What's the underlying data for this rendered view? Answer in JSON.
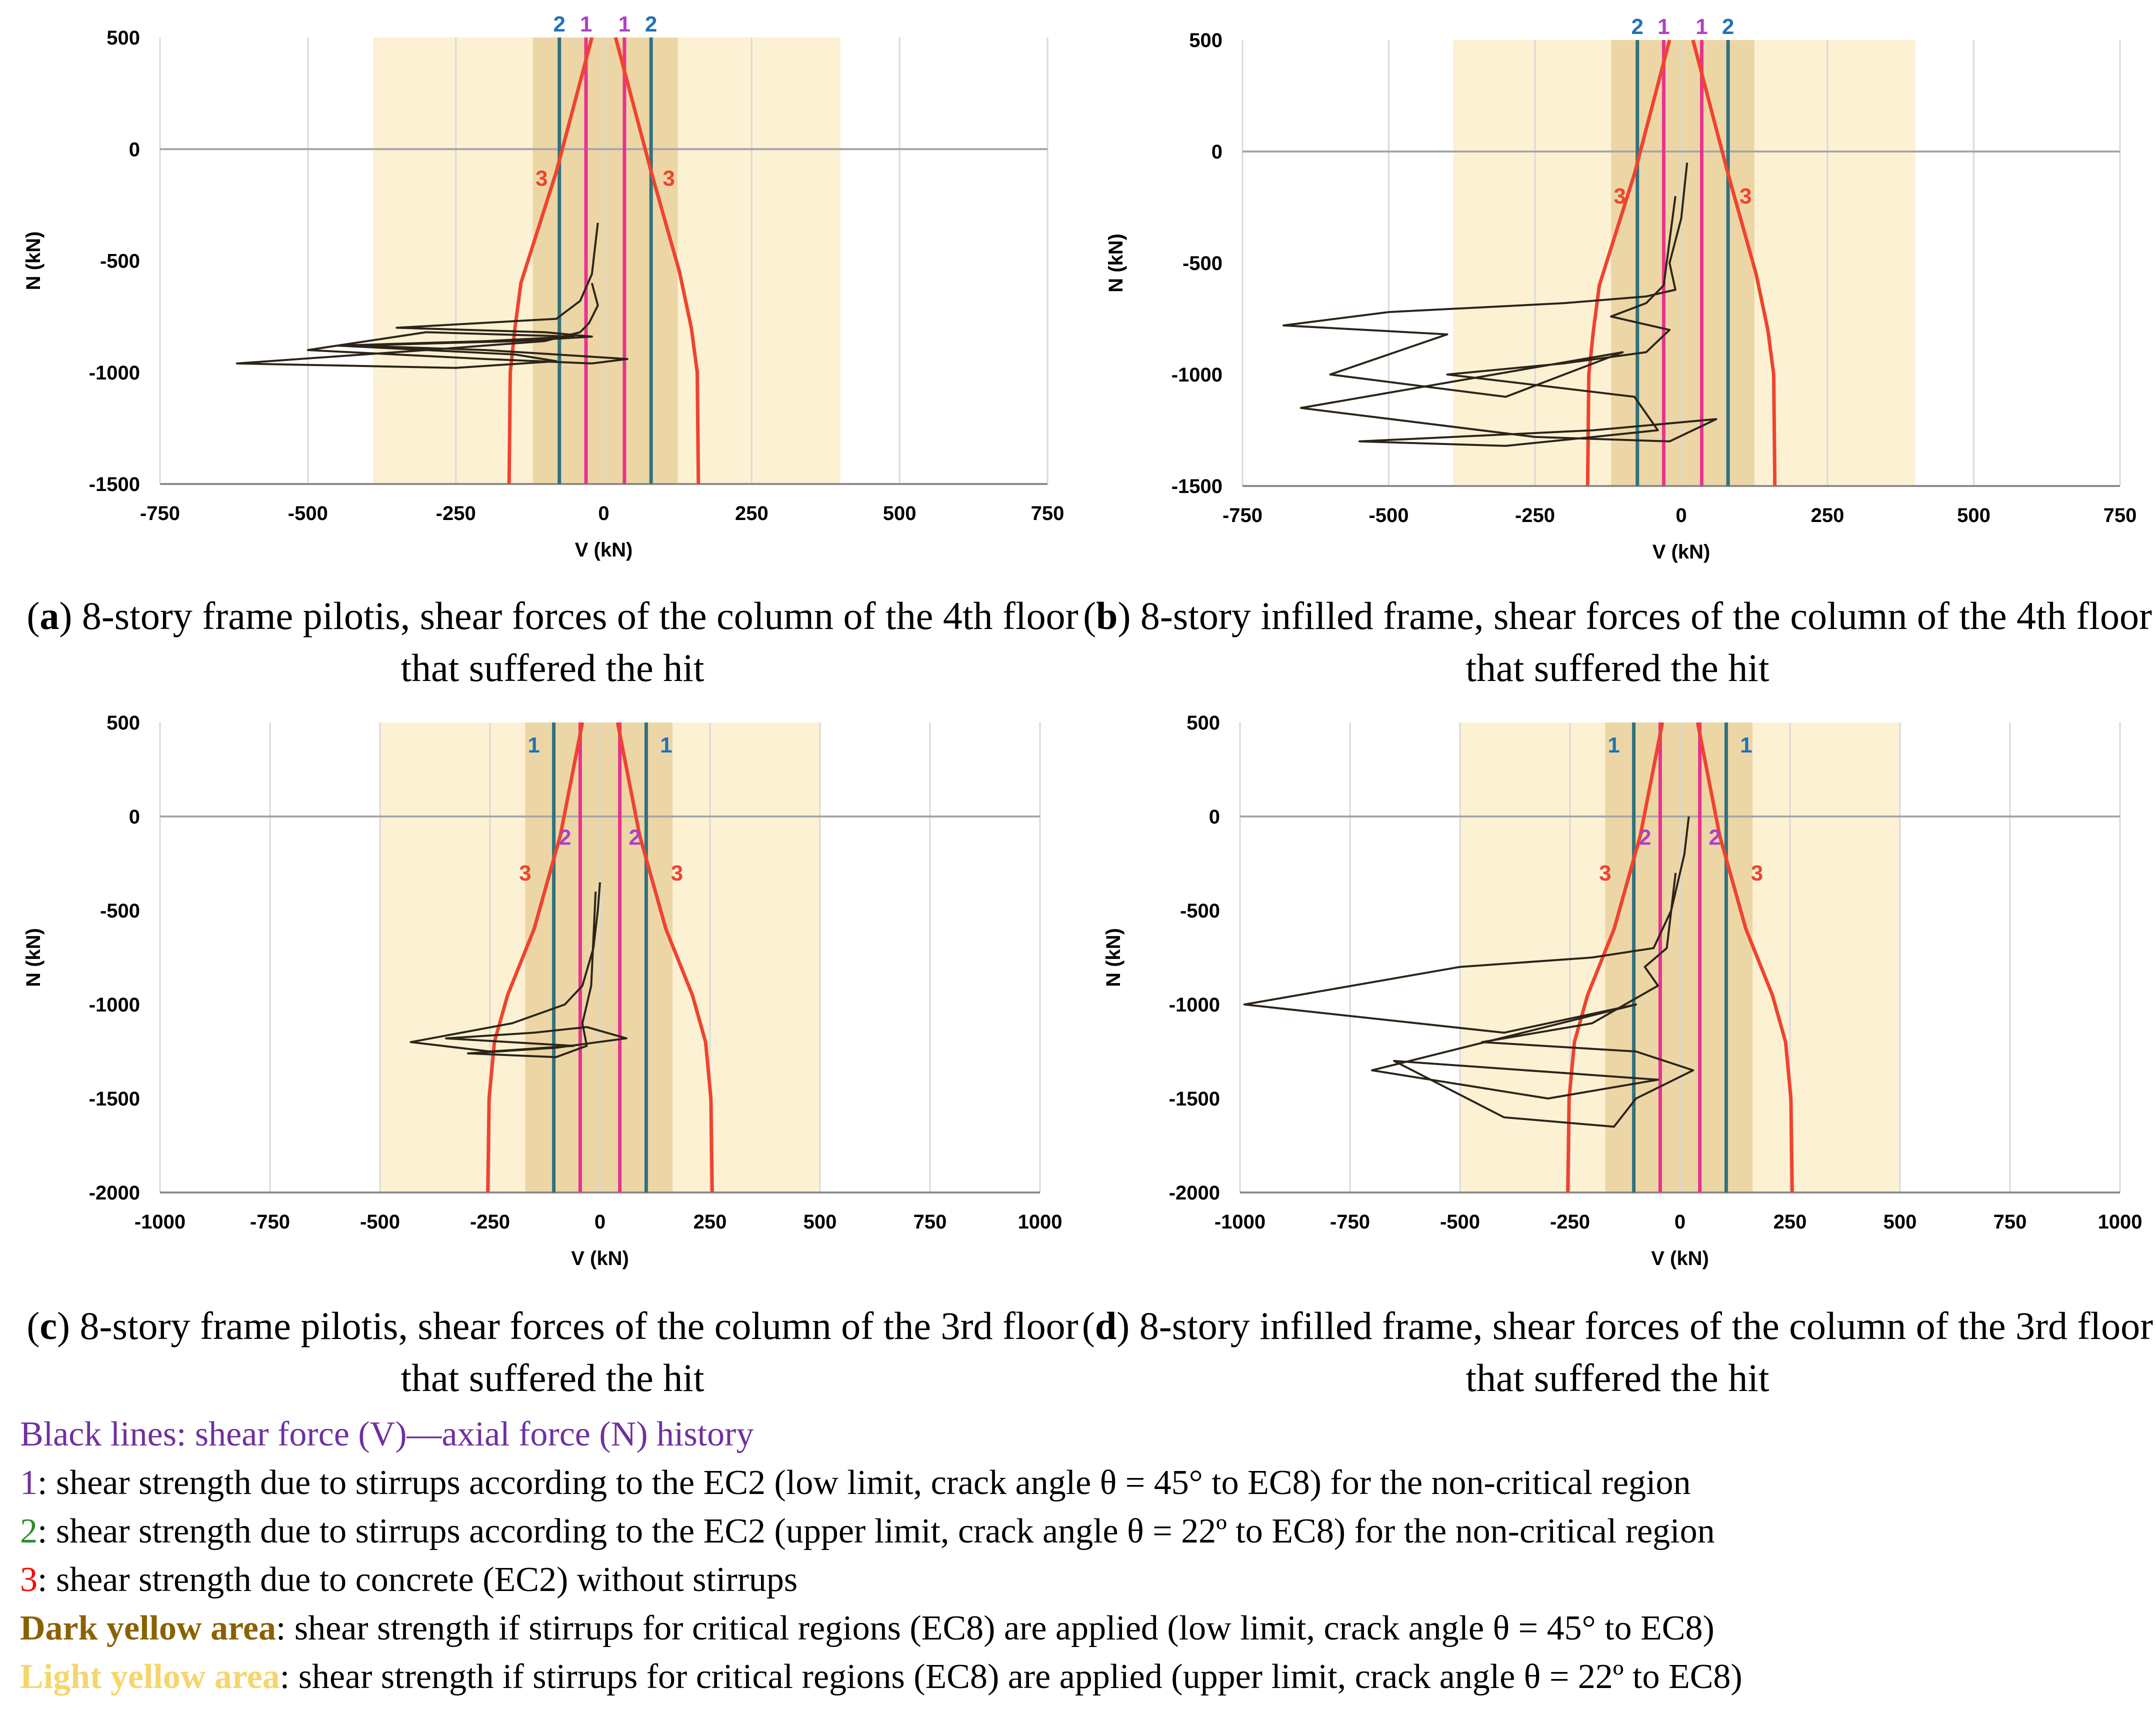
{
  "panels": [
    {
      "id": "a",
      "caption_letter": "a",
      "caption_text": ") 8-story frame pilotis, shear forces of the column of the 4th floor that suffered the hit",
      "chart_data": {
        "type": "line",
        "title": "",
        "xlabel": "V (kN)",
        "ylabel": "N (kN)",
        "xlim": [
          -750,
          750
        ],
        "ylim": [
          -1500,
          500
        ],
        "xticks": [
          -750,
          -500,
          -250,
          0,
          250,
          500,
          750
        ],
        "yticks": [
          -1500,
          -1000,
          -500,
          0,
          500
        ],
        "light_band": [
          -390,
          400
        ],
        "dark_band": [
          -120,
          125
        ],
        "line1_x": [
          -30,
          35
        ],
        "line2_x": [
          -75,
          80
        ],
        "line1_label": "1",
        "line2_label": "2",
        "line3_label": "3",
        "line1_labels_top": true,
        "line2_labels_top": true,
        "curve3": {
          "right": [
            [
              160,
              -1500
            ],
            [
              158,
              -1000
            ],
            [
              148,
              -800
            ],
            [
              128,
              -550
            ],
            [
              80,
              -100
            ],
            [
              20,
              500
            ]
          ],
          "left": [
            [
              -160,
              -1500
            ],
            [
              -158,
              -1000
            ],
            [
              -150,
              -800
            ],
            [
              -140,
              -600
            ],
            [
              -80,
              -100
            ],
            [
              -20,
              500
            ]
          ]
        },
        "label3_pos": [
          [
            -105,
            -130
          ],
          [
            110,
            -130
          ]
        ],
        "history": {
          "x": [
            -20,
            -10,
            -25,
            -40,
            -100,
            -300,
            -620,
            -250,
            -80,
            -150,
            -450,
            -200,
            -50,
            -300,
            -500,
            -200,
            -20,
            40,
            -80,
            -200,
            -420,
            -150,
            -20,
            -100,
            -350,
            -80,
            -60,
            -40,
            -20,
            -10
          ],
          "y": [
            -600,
            -700,
            -780,
            -820,
            -860,
            -900,
            -960,
            -980,
            -950,
            -920,
            -880,
            -860,
            -840,
            -820,
            -900,
            -940,
            -960,
            -940,
            -920,
            -900,
            -880,
            -860,
            -840,
            -820,
            -800,
            -760,
            -720,
            -680,
            -560,
            -330
          ]
        }
      }
    },
    {
      "id": "b",
      "caption_letter": "b",
      "caption_text": ") 8-story infilled frame, shear forces of the column of the 4th floor that suffered the hit",
      "chart_data": {
        "type": "line",
        "title": "",
        "xlabel": "V (kN)",
        "ylabel": "N (kN)",
        "xlim": [
          -750,
          750
        ],
        "ylim": [
          -1500,
          500
        ],
        "xticks": [
          -750,
          -500,
          -250,
          0,
          250,
          500,
          750
        ],
        "yticks": [
          -1500,
          -1000,
          -500,
          0,
          500
        ],
        "light_band": [
          -390,
          400
        ],
        "dark_band": [
          -120,
          125
        ],
        "line1_x": [
          -30,
          35
        ],
        "line2_x": [
          -75,
          80
        ],
        "line1_label": "1",
        "line2_label": "2",
        "line3_label": "3",
        "line1_labels_top": true,
        "line2_labels_top": true,
        "curve3": {
          "right": [
            [
              160,
              -1500
            ],
            [
              158,
              -1000
            ],
            [
              148,
              -800
            ],
            [
              128,
              -550
            ],
            [
              80,
              -100
            ],
            [
              20,
              500
            ]
          ],
          "left": [
            [
              -160,
              -1500
            ],
            [
              -158,
              -1000
            ],
            [
              -150,
              -800
            ],
            [
              -140,
              -600
            ],
            [
              -80,
              -100
            ],
            [
              -20,
              500
            ]
          ]
        },
        "label3_pos": [
          [
            -105,
            -200
          ],
          [
            110,
            -200
          ]
        ],
        "history": {
          "x": [
            10,
            0,
            -20,
            -10,
            -60,
            -200,
            -500,
            -680,
            -400,
            -600,
            -300,
            -100,
            -650,
            -250,
            -20,
            60,
            -150,
            -550,
            -300,
            -150,
            -40,
            -80,
            -400,
            -200,
            -60,
            -20,
            -120,
            -60,
            -30,
            -10
          ],
          "y": [
            -50,
            -300,
            -500,
            -620,
            -650,
            -680,
            -720,
            -780,
            -820,
            -1000,
            -1100,
            -900,
            -1150,
            -1280,
            -1300,
            -1200,
            -1250,
            -1300,
            -1320,
            -1280,
            -1250,
            -1100,
            -1000,
            -950,
            -900,
            -800,
            -740,
            -680,
            -600,
            -200
          ]
        }
      }
    },
    {
      "id": "c",
      "caption_letter": "c",
      "caption_text": ") 8-story frame pilotis, shear forces of the column of the 3rd floor that suffered the hit",
      "chart_data": {
        "type": "line",
        "title": "",
        "xlabel": "V (kN)",
        "ylabel": "N (kN)",
        "xlim": [
          -1000,
          1000
        ],
        "ylim": [
          -2000,
          500
        ],
        "xticks": [
          -1000,
          -750,
          -500,
          -250,
          0,
          250,
          500,
          750,
          1000
        ],
        "yticks": [
          -2000,
          -1500,
          -1000,
          -500,
          0,
          500
        ],
        "light_band": [
          -500,
          500
        ],
        "dark_band": [
          -170,
          165
        ],
        "line1_x": [
          -105,
          105
        ],
        "line2_x": [
          -45,
          45
        ],
        "line1_label": "1",
        "line2_label": "2",
        "line3_label": "3",
        "line1_labels_top": true,
        "line2_labels_top": false,
        "curve3": {
          "right": [
            [
              255,
              -2000
            ],
            [
              252,
              -1500
            ],
            [
              240,
              -1200
            ],
            [
              210,
              -950
            ],
            [
              150,
              -600
            ],
            [
              90,
              -100
            ],
            [
              40,
              500
            ]
          ],
          "left": [
            [
              -255,
              -2000
            ],
            [
              -252,
              -1500
            ],
            [
              -240,
              -1200
            ],
            [
              -210,
              -950
            ],
            [
              -150,
              -600
            ],
            [
              -90,
              -100
            ],
            [
              -40,
              500
            ]
          ]
        },
        "label3_pos": [
          [
            -170,
            -300
          ],
          [
            175,
            -300
          ]
        ],
        "history": {
          "x": [
            0,
            -5,
            -15,
            -40,
            -80,
            -200,
            -430,
            -250,
            -60,
            -350,
            -150,
            -30,
            60,
            -100,
            -300,
            -100,
            -30,
            -40,
            -20,
            -10
          ],
          "y": [
            -350,
            -500,
            -700,
            -900,
            -1000,
            -1100,
            -1200,
            -1250,
            -1220,
            -1180,
            -1150,
            -1120,
            -1180,
            -1230,
            -1260,
            -1280,
            -1220,
            -1100,
            -900,
            -400
          ]
        }
      }
    },
    {
      "id": "d",
      "caption_letter": "d",
      "caption_text": ") 8-story infilled frame, shear forces of the column of the 3rd floor that suffered the hit",
      "chart_data": {
        "type": "line",
        "title": "",
        "xlabel": "V (kN)",
        "ylabel": "N (kN)",
        "xlim": [
          -1000,
          1000
        ],
        "ylim": [
          -2000,
          500
        ],
        "xticks": [
          -1000,
          -750,
          -500,
          -250,
          0,
          250,
          500,
          750,
          1000
        ],
        "yticks": [
          -2000,
          -1500,
          -1000,
          -500,
          0,
          500
        ],
        "light_band": [
          -500,
          500
        ],
        "dark_band": [
          -170,
          165
        ],
        "line1_x": [
          -105,
          105
        ],
        "line2_x": [
          -45,
          45
        ],
        "line1_label": "1",
        "line2_label": "2",
        "line3_label": "3",
        "line1_labels_top": true,
        "line2_labels_top": false,
        "curve3": {
          "right": [
            [
              255,
              -2000
            ],
            [
              252,
              -1500
            ],
            [
              240,
              -1200
            ],
            [
              210,
              -950
            ],
            [
              150,
              -600
            ],
            [
              90,
              -100
            ],
            [
              40,
              500
            ]
          ],
          "left": [
            [
              -255,
              -2000
            ],
            [
              -252,
              -1500
            ],
            [
              -240,
              -1200
            ],
            [
              -210,
              -950
            ],
            [
              -150,
              -600
            ],
            [
              -90,
              -100
            ],
            [
              -40,
              500
            ]
          ]
        },
        "label3_pos": [
          [
            -170,
            -300
          ],
          [
            175,
            -300
          ]
        ],
        "history": {
          "x": [
            20,
            10,
            -20,
            -60,
            -200,
            -500,
            -990,
            -400,
            -100,
            -700,
            -300,
            -50,
            -650,
            -400,
            -150,
            -100,
            30,
            -100,
            -450,
            -200,
            -50,
            -80,
            -30,
            -10
          ],
          "y": [
            0,
            -200,
            -500,
            -700,
            -750,
            -800,
            -1000,
            -1150,
            -1000,
            -1350,
            -1500,
            -1400,
            -1300,
            -1600,
            -1650,
            -1500,
            -1350,
            -1250,
            -1200,
            -1100,
            -900,
            -800,
            -700,
            -300
          ]
        }
      }
    }
  ],
  "legend": {
    "line0_text": "Black lines: shear force (V)—axial force (N) history",
    "line1_key": "1",
    "line1_text": ": shear strength due to stirrups according to the EC2 (low limit, crack angle θ = 45° to EC8) for the non-critical region",
    "line2_key": "2",
    "line2_text": ": shear strength due to stirrups according to the EC2 (upper limit, crack angle θ = 22º to EC8) for the non-critical region",
    "line3_key": "3",
    "line3_text": ": shear strength due to concrete (EC2) without stirrups",
    "line4_key": "Dark yellow area",
    "line4_text": ": shear strength if stirrups for critical regions (EC8) are applied (low limit, crack angle θ = 45° to EC8)",
    "line5_key": "Light yellow area",
    "line5_text": ": shear strength if stirrups for critical regions (EC8) are applied (upper limit, crack angle θ = 22º to EC8)"
  },
  "colors": {
    "light_band": "#fdf1d4",
    "dark_band": "#ecd6a6",
    "line1_top": "#b03fc7",
    "line2_top": "#1f72b8",
    "line_pink": "#e8338f",
    "line_teal": "#2f7280",
    "curve3": "#f0432e",
    "history": "#2b2418",
    "legend_purple": "#7030a0",
    "legend_green": "#2e8b2e",
    "legend_red": "#ff0000",
    "legend_dark_yellow": "#8a6200",
    "legend_light_yellow": "#f5d66b"
  }
}
